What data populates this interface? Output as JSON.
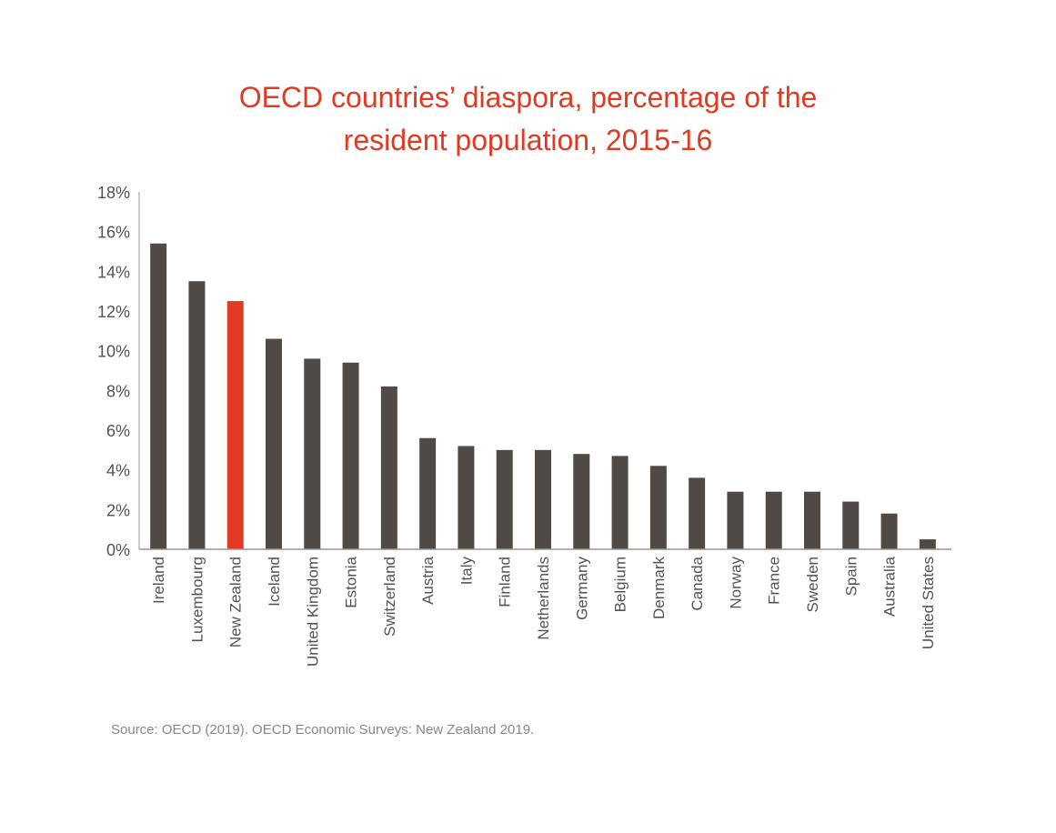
{
  "chart_data": {
    "type": "bar",
    "title": [
      "OECD countries’ diaspora, percentage of the",
      "resident population, 2015-16"
    ],
    "xlabel": "",
    "ylabel": "",
    "ylim": [
      0,
      18
    ],
    "yticks": [
      "0%",
      "2%",
      "4%",
      "6%",
      "8%",
      "10%",
      "12%",
      "14%",
      "16%",
      "18%"
    ],
    "grid": false,
    "categories": [
      "Ireland",
      "Luxembourg",
      "New Zealand",
      "Iceland",
      "United Kingdom",
      "Estonia",
      "Switzerland",
      "Austria",
      "Italy",
      "Finland",
      "Netherlands",
      "Germany",
      "Belgium",
      "Denmark",
      "Canada",
      "Norway",
      "France",
      "Sweden",
      "Spain",
      "Australia",
      "United States"
    ],
    "values": [
      15.4,
      13.5,
      12.5,
      10.6,
      9.6,
      9.4,
      8.2,
      5.6,
      5.2,
      5.0,
      5.0,
      4.8,
      4.7,
      4.2,
      3.6,
      2.9,
      2.9,
      2.9,
      2.4,
      1.8,
      0.5
    ],
    "highlight": "New Zealand",
    "colors": {
      "bar": "#4f4a45",
      "highlight": "#e03a22",
      "title": "#e03a22",
      "axis": "#9a9794",
      "text": "#555250"
    }
  },
  "source": "Source: OECD (2019). OECD Economic Surveys: New Zealand 2019."
}
